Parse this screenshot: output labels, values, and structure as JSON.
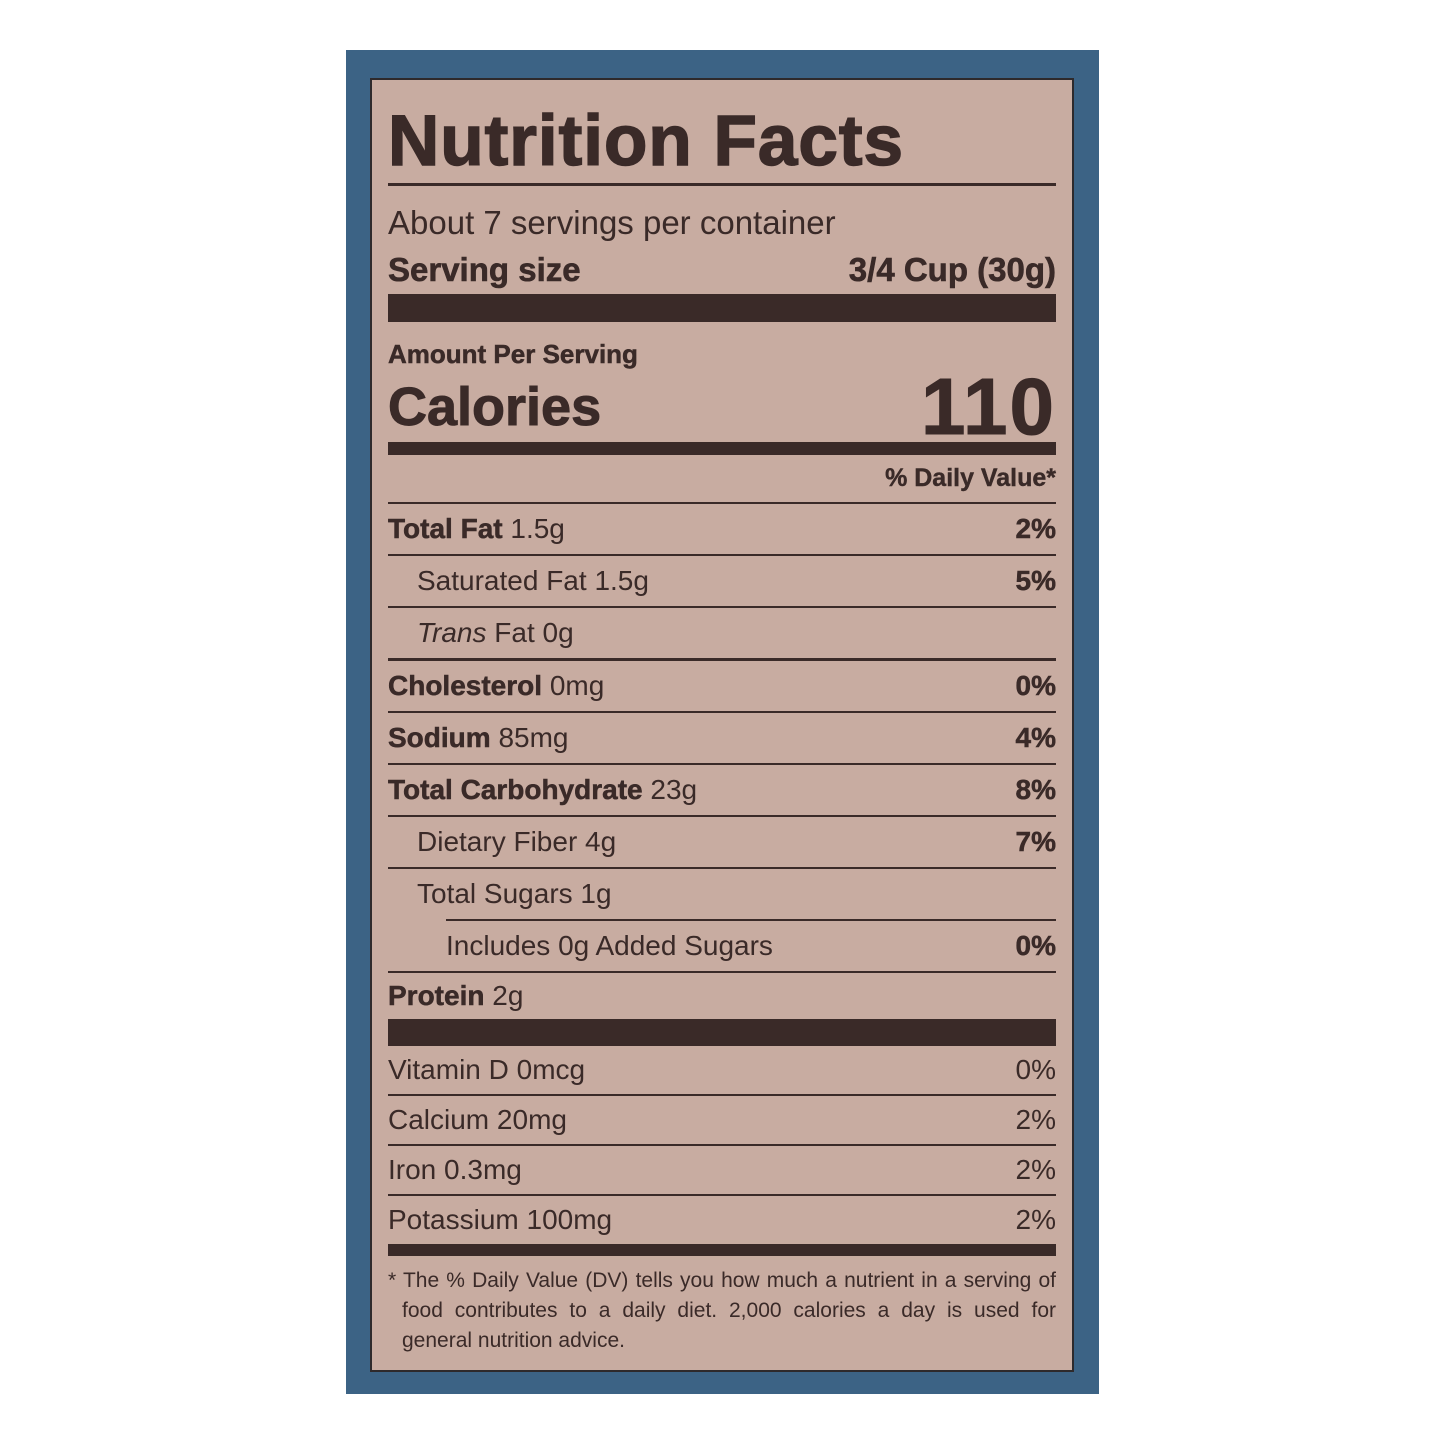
{
  "label": {
    "title": "Nutrition Facts",
    "servings_per_container": "About 7 servings per container",
    "serving_size_label": "Serving size",
    "serving_size_value": "3/4 Cup (30g)",
    "amount_per_serving": "Amount Per Serving",
    "calories_label": "Calories",
    "calories_value": "110",
    "daily_value_header": "% Daily Value*",
    "nutrients": [
      {
        "name": "Total Fat",
        "amount": "1.5g",
        "dv": "2%"
      },
      {
        "name": "Saturated Fat",
        "amount": "1.5g",
        "dv": "5%"
      },
      {
        "name_italic": "Trans",
        "name": "Fat",
        "amount": "0g",
        "dv": ""
      },
      {
        "name": "Cholesterol",
        "amount": "0mg",
        "dv": "0%"
      },
      {
        "name": "Sodium",
        "amount": "85mg",
        "dv": "4%"
      },
      {
        "name": "Total Carbohydrate",
        "amount": "23g",
        "dv": "8%"
      },
      {
        "name": "Dietary Fiber",
        "amount": "4g",
        "dv": "7%"
      },
      {
        "name": "Total Sugars",
        "amount": "1g",
        "dv": ""
      },
      {
        "name": "Includes 0g Added Sugars",
        "amount": "",
        "dv": "0%"
      },
      {
        "name": "Protein",
        "amount": "2g",
        "dv": ""
      }
    ],
    "vitamins": [
      {
        "name": "Vitamin D",
        "amount": "0mcg",
        "dv": "0%"
      },
      {
        "name": "Calcium",
        "amount": "20mg",
        "dv": "2%"
      },
      {
        "name": "Iron",
        "amount": "0.3mg",
        "dv": "2%"
      },
      {
        "name": "Potassium",
        "amount": "100mg",
        "dv": "2%"
      }
    ],
    "footnote": "* The % Daily Value (DV) tells you how much a nutrient in a serving of food contributes to a daily diet. 2,000 calories a day is used for general nutrition advice."
  },
  "colors": {
    "frame": "#3c6385",
    "panel": "#c8aca1",
    "ink": "#3a2a28"
  }
}
